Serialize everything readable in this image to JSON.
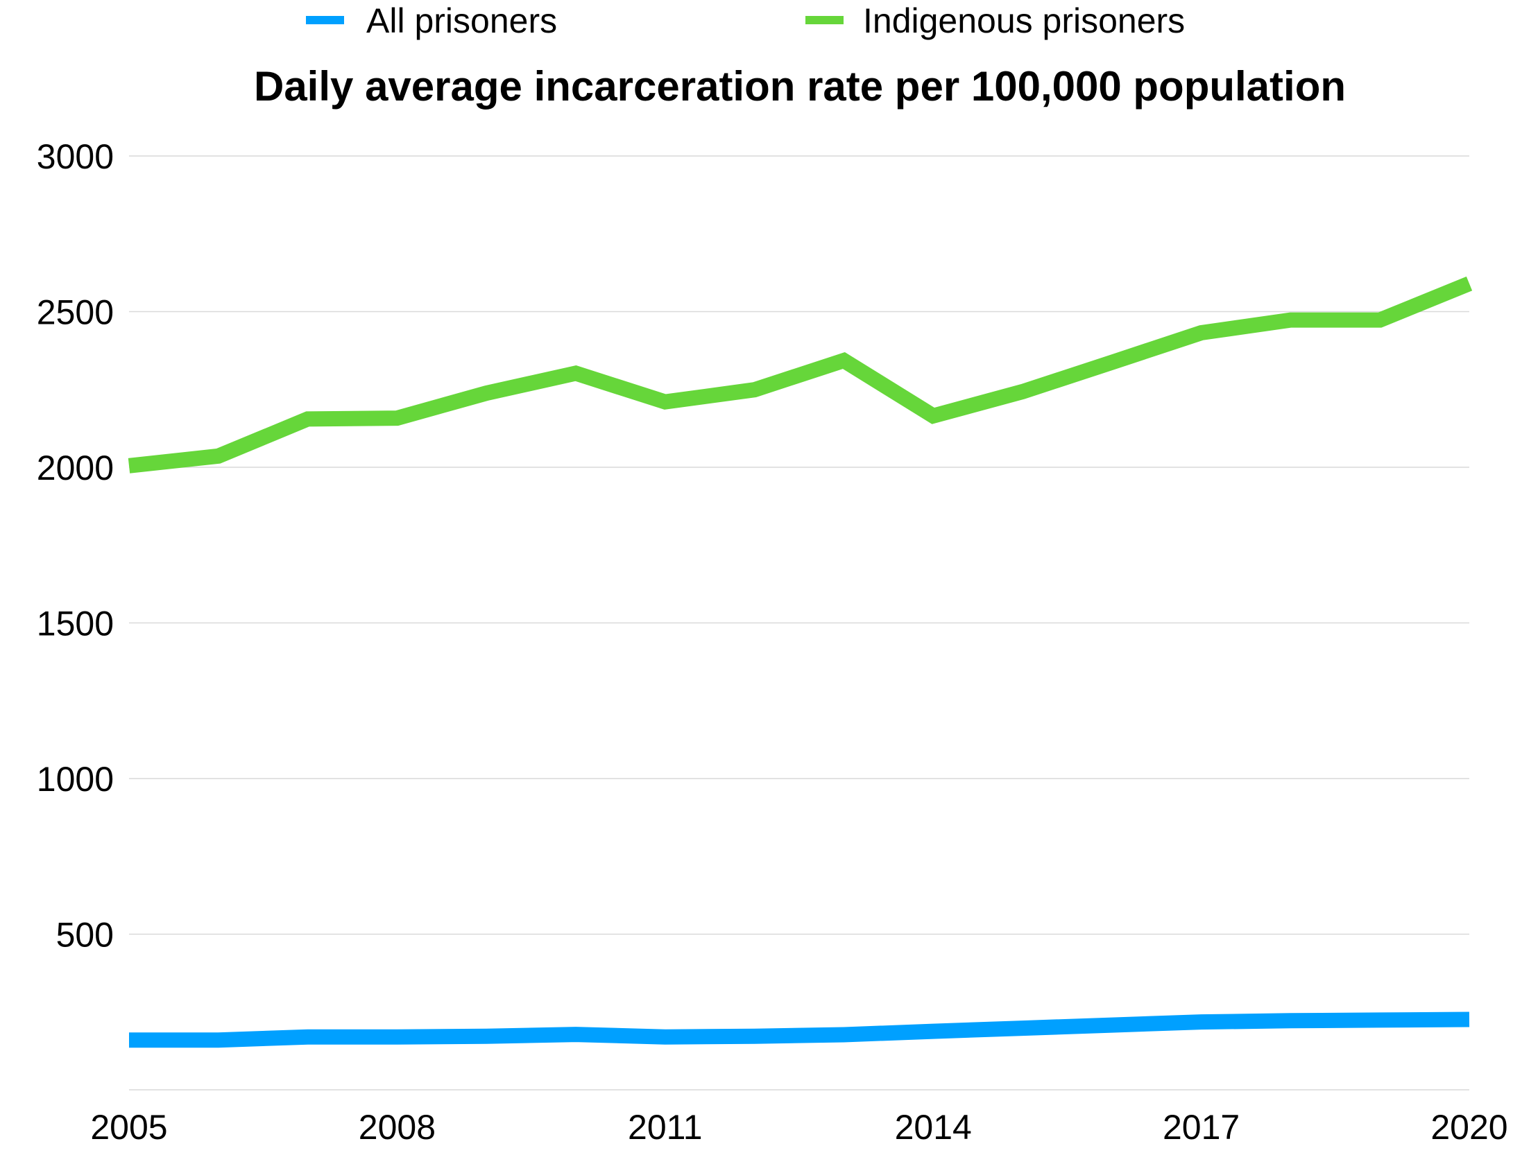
{
  "chart_data": {
    "type": "line",
    "title": "Daily average incarceration rate per 100,000 population",
    "xlabel": "",
    "ylabel": "",
    "x": [
      2005,
      2006,
      2007,
      2008,
      2009,
      2010,
      2011,
      2012,
      2013,
      2014,
      2015,
      2016,
      2017,
      2018,
      2019,
      2020
    ],
    "xticks": [
      "2005",
      "2008",
      "2011",
      "2014",
      "2017",
      "2020"
    ],
    "yticks": [
      "3000",
      "2500",
      "2000",
      "1500",
      "1000",
      "500"
    ],
    "ylim": [
      0,
      3000
    ],
    "xlim": [
      2005,
      2020
    ],
    "grid": true,
    "legend_position": "top",
    "series": [
      {
        "name": "All prisoners",
        "color": "#00a0ff",
        "values": [
          160,
          160,
          170,
          170,
          172,
          178,
          170,
          172,
          177,
          188,
          198,
          208,
          218,
          222,
          224,
          226
        ]
      },
      {
        "name": "Indigenous prisoners",
        "color": "#66d63a",
        "values": [
          2005,
          2036,
          2155,
          2158,
          2238,
          2302,
          2210,
          2249,
          2343,
          2165,
          2243,
          2337,
          2432,
          2473,
          2473,
          2590
        ]
      }
    ]
  }
}
